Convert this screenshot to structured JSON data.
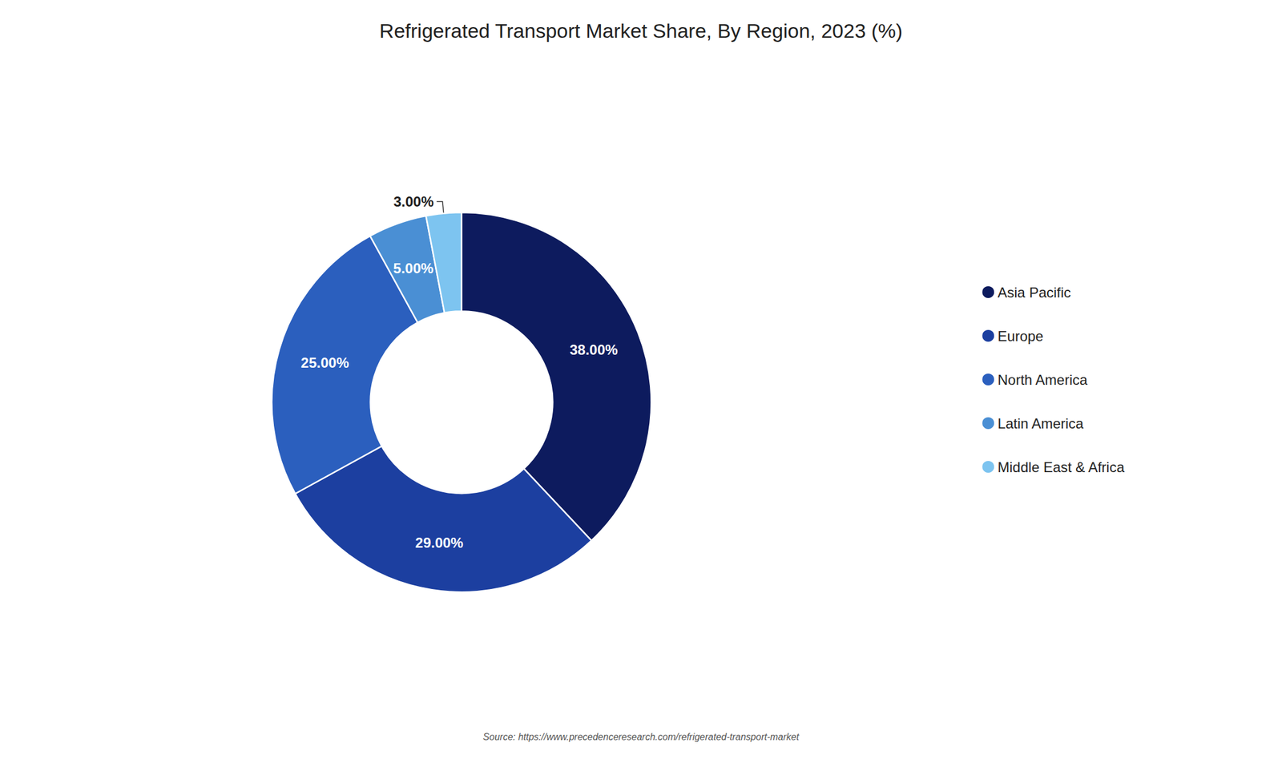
{
  "chart_data": {
    "type": "pie",
    "title": "Refrigerated Transport Market Share, By Region, 2023 (%)",
    "categories": [
      "Asia Pacific",
      "Europe",
      "North America",
      "Latin America",
      "Middle East & Africa"
    ],
    "values": [
      38.0,
      29.0,
      25.0,
      5.0,
      3.0
    ],
    "value_labels": [
      "38.00%",
      "29.00%",
      "25.00%",
      "5.00%",
      "3.00%"
    ],
    "colors": [
      "#0d1b5e",
      "#1c3fa0",
      "#2b5fbe",
      "#4a8fd4",
      "#7dc4f0"
    ],
    "data_labels": true,
    "legend": "right",
    "annotations": [
      "Source: https://www.precedenceresearch.com/refrigerated-transport-market"
    ]
  }
}
